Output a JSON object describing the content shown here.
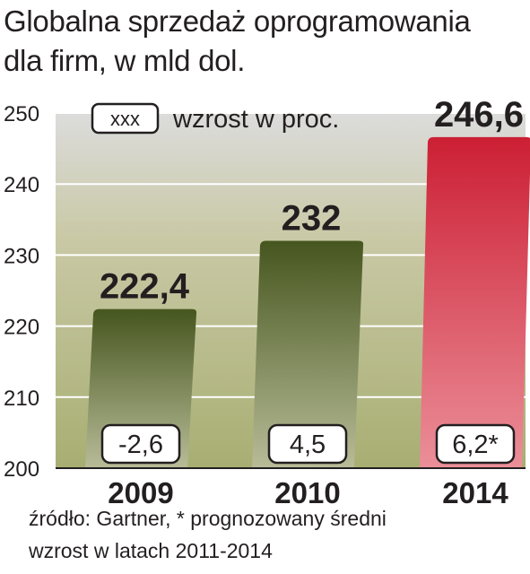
{
  "title_lines": [
    "Globalna sprzedaż oprogramowania",
    "dla firm, w mld dol."
  ],
  "legend": {
    "box_label": "xxx",
    "text": "wzrost w proc."
  },
  "source_lines": [
    "źródło: Gartner, * prognozowany średni",
    "wzrost w latach 2011-2014"
  ],
  "colors": {
    "olive_dark": "#4a5a22",
    "olive_light": "#b7bb95",
    "red_dark": "#cc1f34",
    "red_light": "#e8848f",
    "grid": "#ffffff",
    "text": "#231f20"
  },
  "chart_data": {
    "type": "bar",
    "categories": [
      "2009",
      "2010",
      "2014"
    ],
    "values": [
      222.4,
      232,
      246.6
    ],
    "value_labels": [
      "222,4",
      "232",
      "246,6"
    ],
    "growth_labels": [
      "-2,6",
      "4,5",
      "6,2*"
    ],
    "yticks": [
      "200",
      "210",
      "220",
      "230",
      "240",
      "250"
    ],
    "ylim": [
      200,
      250
    ],
    "grid": true
  }
}
